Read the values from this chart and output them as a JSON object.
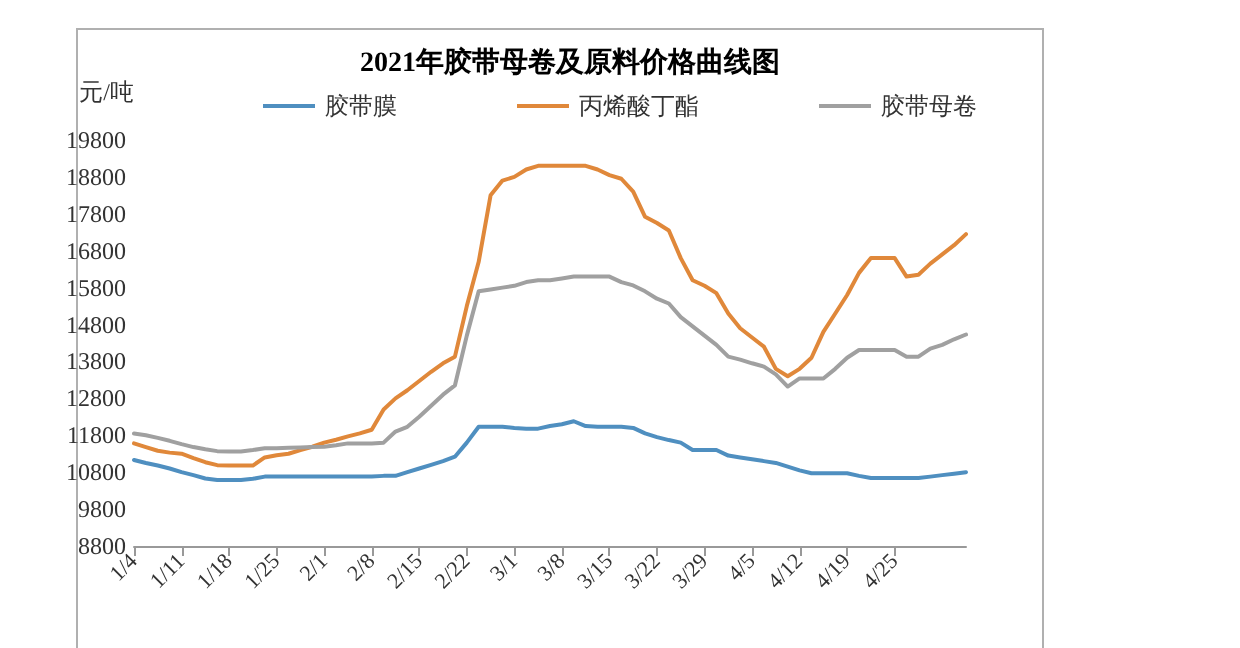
{
  "chart_data": {
    "type": "line",
    "title": "2021年胶带母卷及原料价格曲线图",
    "ylabel": "元/吨",
    "categories": [
      "1/4",
      null,
      null,
      null,
      "1/11",
      null,
      null,
      null,
      "1/18",
      null,
      null,
      null,
      "1/25",
      null,
      null,
      null,
      "2/1",
      null,
      null,
      null,
      "2/8",
      null,
      null,
      null,
      "2/15",
      null,
      null,
      null,
      "2/22",
      null,
      null,
      null,
      "3/1",
      null,
      null,
      null,
      "3/8",
      null,
      null,
      null,
      "3/15",
      null,
      null,
      null,
      "3/22",
      null,
      null,
      null,
      "3/29",
      null,
      null,
      null,
      "4/5",
      null,
      null,
      null,
      "4/12",
      null,
      null,
      null,
      "4/19",
      null,
      null,
      null,
      "4/25",
      null,
      null,
      null,
      null,
      null,
      null
    ],
    "series": [
      {
        "name": "胶带膜",
        "color": "#4f8fc0",
        "values": [
          11130,
          11050,
          10980,
          10900,
          10800,
          10720,
          10630,
          10590,
          10590,
          10590,
          10620,
          10680,
          10680,
          10680,
          10680,
          10680,
          10680,
          10680,
          10680,
          10680,
          10680,
          10700,
          10700,
          10800,
          10900,
          11000,
          11100,
          11220,
          11600,
          12030,
          12030,
          12030,
          12000,
          11980,
          11980,
          12050,
          12100,
          12180,
          12050,
          12030,
          12030,
          12030,
          12000,
          11850,
          11750,
          11670,
          11600,
          11400,
          11400,
          11400,
          11250,
          11200,
          11150,
          11100,
          11050,
          10950,
          10850,
          10770,
          10770,
          10770,
          10770,
          10700,
          10640,
          10640,
          10640,
          10640,
          10640,
          10680,
          10720,
          10760,
          10800
        ]
      },
      {
        "name": "丙烯酸丁酯",
        "color": "#e0883a",
        "values": [
          11580,
          11480,
          11380,
          11330,
          11300,
          11180,
          11070,
          10990,
          10980,
          10980,
          10980,
          11200,
          11260,
          11300,
          11400,
          11490,
          11600,
          11680,
          11770,
          11850,
          11950,
          12500,
          12800,
          13020,
          13270,
          13520,
          13750,
          13930,
          15300,
          16500,
          18300,
          18700,
          18800,
          19000,
          19100,
          19100,
          19100,
          19100,
          19100,
          19000,
          18850,
          18750,
          18400,
          17720,
          17550,
          17350,
          16600,
          16000,
          15850,
          15650,
          15100,
          14700,
          14450,
          14200,
          13600,
          13400,
          13600,
          13900,
          14600,
          15100,
          15600,
          16200,
          16600,
          16600,
          16600,
          16100,
          16150,
          16450,
          16700,
          16950,
          17250
        ]
      },
      {
        "name": "胶带母卷",
        "color": "#a0a0a0",
        "values": [
          11850,
          11800,
          11730,
          11650,
          11560,
          11480,
          11420,
          11370,
          11360,
          11360,
          11400,
          11450,
          11450,
          11460,
          11470,
          11480,
          11490,
          11530,
          11580,
          11580,
          11580,
          11600,
          11900,
          12030,
          12300,
          12600,
          12900,
          13150,
          14500,
          15700,
          15750,
          15800,
          15850,
          15950,
          16000,
          16000,
          16050,
          16100,
          16100,
          16100,
          16100,
          15950,
          15860,
          15700,
          15500,
          15370,
          15000,
          14750,
          14500,
          14250,
          13930,
          13850,
          13750,
          13660,
          13450,
          13120,
          13340,
          13340,
          13340,
          13600,
          13900,
          14110,
          14110,
          14110,
          14110,
          13930,
          13930,
          14150,
          14250,
          14400,
          14530
        ]
      }
    ],
    "ylim": [
      8800,
      19800
    ],
    "yticks": [
      8800,
      9800,
      10800,
      11800,
      12800,
      13800,
      14800,
      15800,
      16800,
      17800,
      18800,
      19800
    ],
    "grid": false,
    "legend": "top",
    "marker": "none",
    "line_style": "solid"
  }
}
